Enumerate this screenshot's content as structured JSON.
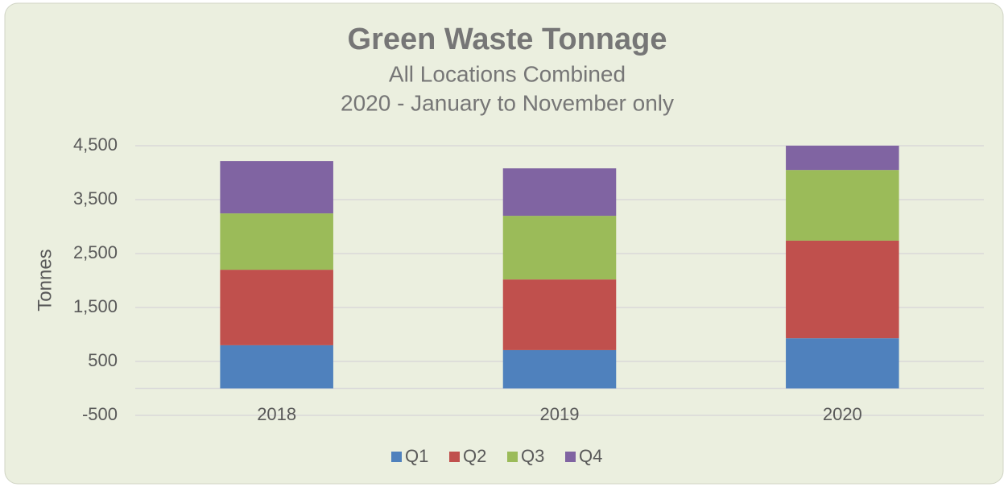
{
  "chart_data": {
    "type": "stacked_bar",
    "title": "Green Waste Tonnage",
    "subtitle": [
      "All Locations Combined",
      "2020 - January to November only"
    ],
    "y_label": "Tonnes",
    "categories": [
      "2018",
      "2019",
      "2020"
    ],
    "series": [
      {
        "name": "Q1",
        "color": "#4f81bd",
        "values": [
          800,
          710,
          930
        ]
      },
      {
        "name": "Q2",
        "color": "#c0504d",
        "values": [
          1400,
          1310,
          1810
        ]
      },
      {
        "name": "Q3",
        "color": "#9bbb59",
        "values": [
          1045,
          1180,
          1310
        ]
      },
      {
        "name": "Q4",
        "color": "#8064a2",
        "values": [
          970,
          880,
          450
        ]
      }
    ],
    "ylim": [
      -500,
      4500
    ],
    "yticks": [
      -500,
      500,
      {
        "value": 1500,
        "label": "1,500"
      },
      {
        "value": 2500,
        "label": "2,500"
      },
      {
        "value": 3500,
        "label": "3,500"
      },
      {
        "value": 4500,
        "label": "4,500"
      }
    ],
    "grid": true,
    "legend": "bottom"
  }
}
